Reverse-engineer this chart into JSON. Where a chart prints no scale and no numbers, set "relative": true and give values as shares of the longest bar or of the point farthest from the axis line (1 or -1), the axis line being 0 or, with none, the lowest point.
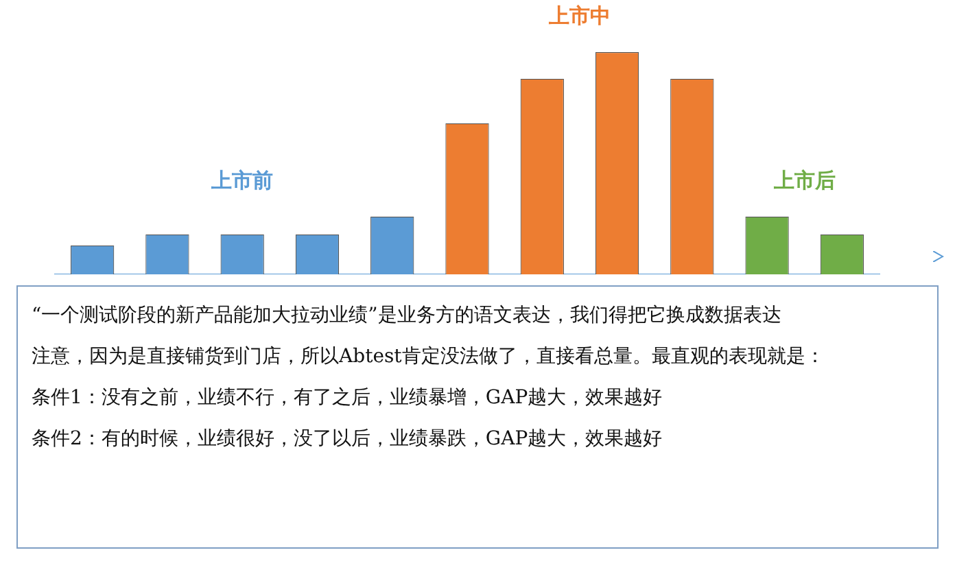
{
  "chart_data": {
    "type": "bar",
    "relative": true,
    "stacked": true,
    "legend": false,
    "categories": [
      null,
      null,
      null,
      null,
      null,
      null,
      null,
      null,
      null,
      null,
      null
    ],
    "series": [
      {
        "name": "上市前",
        "color": "#5b9bd5",
        "values": [
          0.13,
          0.18,
          0.18,
          0.18,
          0.26,
          null,
          null,
          null,
          null,
          null,
          null
        ]
      },
      {
        "name": "上市中",
        "color": "#ed7d31",
        "values": [
          null,
          null,
          null,
          null,
          null,
          0.68,
          0.88,
          1,
          0.88,
          null,
          null
        ]
      },
      {
        "name": "上市后",
        "color": "#70ad47",
        "values": [
          null,
          null,
          null,
          null,
          null,
          null,
          null,
          null,
          null,
          0.26,
          0.18
        ]
      }
    ],
    "annotations": [
      "“一个测试阶段的新产品能加大拉动业绩”是业务方的语文表达，我们得把它换成数据表达",
      "注意，因为是直接铺货到门店，所以Abtest肯定没法做了，直接看总量。最直观的表现就是：",
      "条件1：没有之前，业绩不行，有了之后，业绩暴增，GAP越大，效果越好",
      "条件2：有的时候，业绩很好，没了以后，业绩暴跌，GAP越大，效果越好"
    ]
  }
}
